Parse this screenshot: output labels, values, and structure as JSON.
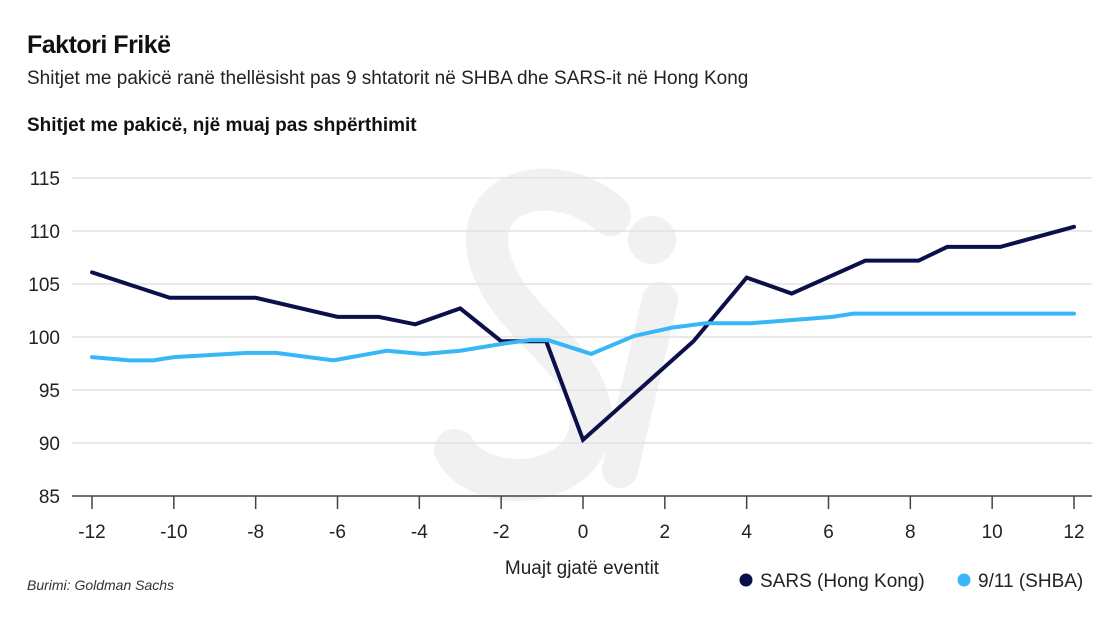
{
  "header": {
    "title": "Faktori Frikë",
    "subtitle": "Shitjet me pakicë ranë thellësisht pas 9 shtatorit në SHBA dhe SARS-it në Hong Kong"
  },
  "source": "Burimi: Goldman Sachs",
  "watermark": "Si",
  "chart_data": {
    "type": "line",
    "title": "Shitjet me pakicë, një muaj pas shpërthimit",
    "xlabel": "Muajt gjatë eventit",
    "ylabel": "",
    "xlim": [
      -12,
      12
    ],
    "ylim": [
      85,
      115
    ],
    "xticks": [
      -12,
      -10,
      -8,
      -6,
      -4,
      -2,
      0,
      2,
      4,
      6,
      8,
      10,
      12
    ],
    "yticks": [
      85,
      90,
      95,
      100,
      105,
      110,
      115
    ],
    "grid": true,
    "legend_placement": "bottom-right",
    "series": [
      {
        "name": "SARS (Hong Kong)",
        "color": "#0b0f4a",
        "points": [
          [
            -12,
            106.1
          ],
          [
            -10.1,
            103.7
          ],
          [
            -8,
            103.7
          ],
          [
            -6,
            101.9
          ],
          [
            -5,
            101.9
          ],
          [
            -4.1,
            101.2
          ],
          [
            -3,
            102.7
          ],
          [
            -2,
            99.6
          ],
          [
            -0.9,
            99.6
          ],
          [
            0,
            90.3
          ],
          [
            2.7,
            99.6
          ],
          [
            4,
            105.6
          ],
          [
            5.1,
            104.1
          ],
          [
            6.9,
            107.2
          ],
          [
            8.2,
            107.2
          ],
          [
            8.9,
            108.5
          ],
          [
            10.2,
            108.5
          ],
          [
            12,
            110.4
          ]
        ]
      },
      {
        "name": "9/11 (SHBA)",
        "color": "#38b6f5",
        "points": [
          [
            -12,
            98.1
          ],
          [
            -11.1,
            97.8
          ],
          [
            -10.5,
            97.8
          ],
          [
            -10,
            98.1
          ],
          [
            -8.2,
            98.5
          ],
          [
            -7.5,
            98.5
          ],
          [
            -6.1,
            97.8
          ],
          [
            -4.8,
            98.7
          ],
          [
            -3.9,
            98.4
          ],
          [
            -3,
            98.7
          ],
          [
            -1.9,
            99.4
          ],
          [
            -1.3,
            99.7
          ],
          [
            -0.85,
            99.7
          ],
          [
            0.2,
            98.4
          ],
          [
            1.25,
            100.1
          ],
          [
            2.2,
            100.9
          ],
          [
            3,
            101.3
          ],
          [
            4.1,
            101.3
          ],
          [
            6.1,
            101.9
          ],
          [
            6.6,
            102.2
          ],
          [
            12,
            102.2
          ]
        ]
      }
    ]
  }
}
